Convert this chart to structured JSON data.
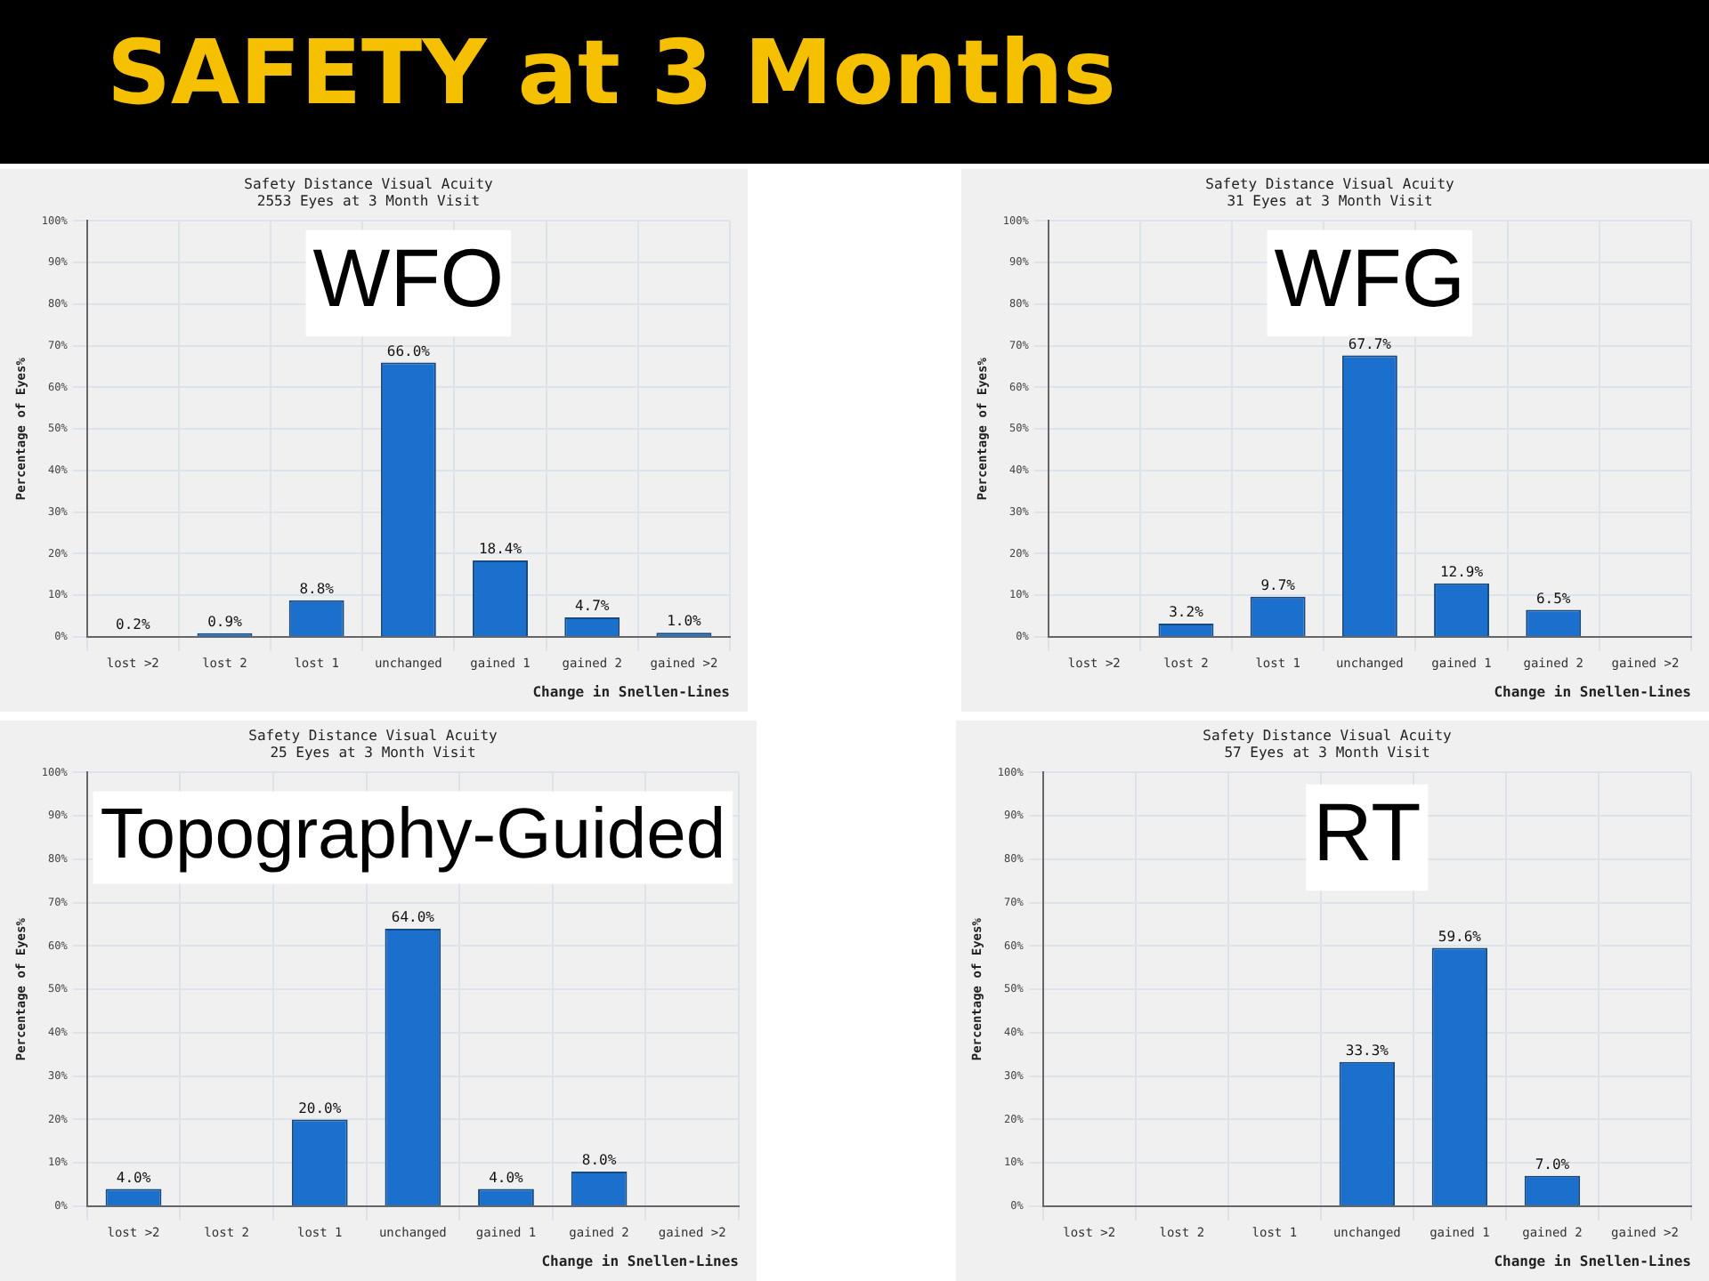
{
  "chart_data": [
    {
      "type": "bar",
      "title": "Safety Distance Visual Acuity",
      "subtitle": "2553 Eyes at 3 Month Visit",
      "xlabel": "Change in Snellen-Lines",
      "ylabel": "Percentage of Eyes%",
      "annotations": [
        "SAFETY at 3 Months",
        "WFO"
      ],
      "categories": [
        "lost >2",
        "lost 2",
        "lost 1",
        "unchanged",
        "gained 1",
        "gained 2",
        "gained >2"
      ],
      "values": [
        0.2,
        0.9,
        8.8,
        66.0,
        18.4,
        4.7,
        1.0
      ],
      "value_labels": [
        "0.2%",
        "0.9%",
        "8.8%",
        "66.0%",
        "18.4%",
        "4.7%",
        "1.0%"
      ],
      "color": "#1a70cc",
      "ylim": [
        0,
        100
      ],
      "yticks": [
        {
          "value": 0,
          "label": "0%"
        },
        {
          "value": 10,
          "label": "10%"
        },
        {
          "value": 20,
          "label": "20%"
        },
        {
          "value": 30,
          "label": "30%"
        },
        {
          "value": 40,
          "label": "40%"
        },
        {
          "value": 50,
          "label": "50%"
        },
        {
          "value": 60,
          "label": "60%"
        },
        {
          "value": 70,
          "label": "70%"
        },
        {
          "value": 80,
          "label": "80%"
        },
        {
          "value": 90,
          "label": "90%"
        },
        {
          "value": 100,
          "label": "100%"
        }
      ],
      "grid": true
    },
    {
      "type": "bar",
      "title": "Safety Distance Visual Acuity",
      "subtitle": "31 Eyes at 3 Month Visit",
      "xlabel": "Change in Snellen-Lines",
      "ylabel": "Percentage of Eyes%",
      "annotations": [
        "WFG"
      ],
      "categories": [
        "lost >2",
        "lost 2",
        "lost 1",
        "unchanged",
        "gained 1",
        "gained 2",
        "gained >2"
      ],
      "values": [
        0,
        3.2,
        9.7,
        67.7,
        12.9,
        6.5,
        0
      ],
      "value_labels": [
        null,
        "3.2%",
        "9.7%",
        "67.7%",
        "12.9%",
        "6.5%",
        null
      ],
      "color": "#1a70cc",
      "ylim": [
        0,
        100
      ],
      "yticks": [
        {
          "value": 0,
          "label": "0%"
        },
        {
          "value": 10,
          "label": "10%"
        },
        {
          "value": 20,
          "label": "20%"
        },
        {
          "value": 30,
          "label": "30%"
        },
        {
          "value": 40,
          "label": "40%"
        },
        {
          "value": 50,
          "label": "50%"
        },
        {
          "value": 60,
          "label": "60%"
        },
        {
          "value": 70,
          "label": "70%"
        },
        {
          "value": 80,
          "label": "80%"
        },
        {
          "value": 90,
          "label": "90%"
        },
        {
          "value": 100,
          "label": "100%"
        }
      ],
      "grid": true
    },
    {
      "type": "bar",
      "title": "Safety Distance Visual Acuity",
      "subtitle": "25 Eyes at 3 Month Visit",
      "xlabel": "Change in Snellen-Lines",
      "ylabel": "Percentage of Eyes%",
      "annotations": [
        "Topography-Guided"
      ],
      "categories": [
        "lost >2",
        "lost 2",
        "lost 1",
        "unchanged",
        "gained 1",
        "gained 2",
        "gained >2"
      ],
      "values": [
        4.0,
        0,
        20.0,
        64.0,
        4.0,
        8.0,
        0
      ],
      "value_labels": [
        "4.0%",
        null,
        "20.0%",
        "64.0%",
        "4.0%",
        "8.0%",
        null
      ],
      "color": "#1a70cc",
      "ylim": [
        0,
        100
      ],
      "yticks": [
        {
          "value": 0,
          "label": "0%"
        },
        {
          "value": 10,
          "label": "10%"
        },
        {
          "value": 20,
          "label": "20%"
        },
        {
          "value": 30,
          "label": "30%"
        },
        {
          "value": 40,
          "label": "40%"
        },
        {
          "value": 50,
          "label": "50%"
        },
        {
          "value": 60,
          "label": "60%"
        },
        {
          "value": 70,
          "label": "70%"
        },
        {
          "value": 80,
          "label": "80%"
        },
        {
          "value": 90,
          "label": "90%"
        },
        {
          "value": 100,
          "label": "100%"
        }
      ],
      "grid": true
    },
    {
      "type": "bar",
      "title": "Safety Distance Visual Acuity",
      "subtitle": "57 Eyes at 3 Month Visit",
      "xlabel": "Change in Snellen-Lines",
      "ylabel": "Percentage of Eyes%",
      "annotations": [
        "RT"
      ],
      "categories": [
        "lost >2",
        "lost 2",
        "lost 1",
        "unchanged",
        "gained 1",
        "gained 2",
        "gained >2"
      ],
      "values": [
        0,
        0,
        0,
        33.3,
        59.6,
        7.0,
        0
      ],
      "value_labels": [
        null,
        null,
        null,
        "33.3%",
        "59.6%",
        "7.0%",
        null
      ],
      "color": "#1a70cc",
      "ylim": [
        0,
        100
      ],
      "yticks": [
        {
          "value": 0,
          "label": "0%"
        },
        {
          "value": 10,
          "label": "10%"
        },
        {
          "value": 20,
          "label": "20%"
        },
        {
          "value": 30,
          "label": "30%"
        },
        {
          "value": 40,
          "label": "40%"
        },
        {
          "value": 50,
          "label": "50%"
        },
        {
          "value": 60,
          "label": "60%"
        },
        {
          "value": 70,
          "label": "70%"
        },
        {
          "value": 80,
          "label": "80%"
        },
        {
          "value": 90,
          "label": "90%"
        },
        {
          "value": 100,
          "label": "100%"
        }
      ],
      "grid": true
    }
  ]
}
